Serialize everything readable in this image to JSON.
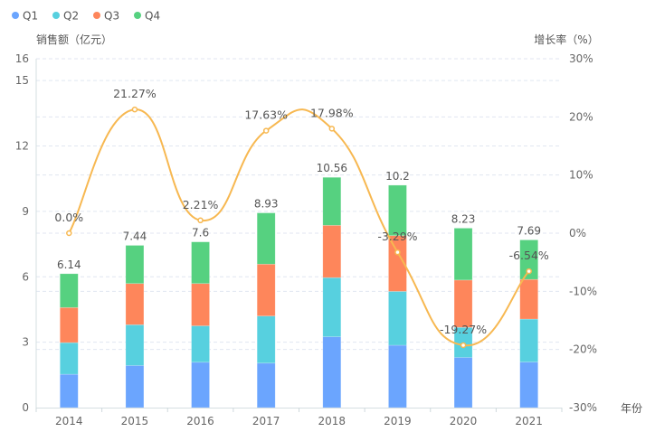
{
  "chart_data": {
    "type": "bar",
    "subtype": "stacked bar + smooth line, dual axis",
    "categories": [
      "2014",
      "2015",
      "2016",
      "2017",
      "2018",
      "2019",
      "2020",
      "2021"
    ],
    "series": [
      {
        "name": "Q1",
        "type": "bar",
        "stack": "total",
        "axis": "left",
        "color": "#6ba5fe",
        "values": [
          1.53,
          1.93,
          2.08,
          2.04,
          3.25,
          2.86,
          2.3,
          2.09
        ]
      },
      {
        "name": "Q2",
        "type": "bar",
        "stack": "total",
        "axis": "left",
        "color": "#57d0df",
        "values": [
          1.45,
          1.87,
          1.67,
          2.16,
          2.71,
          2.47,
          1.38,
          1.97
        ]
      },
      {
        "name": "Q3",
        "type": "bar",
        "stack": "total",
        "axis": "left",
        "color": "#fe865b",
        "values": [
          1.61,
          1.89,
          1.94,
          2.38,
          2.4,
          2.56,
          2.17,
          1.82
        ]
      },
      {
        "name": "Q4",
        "type": "bar",
        "stack": "total",
        "axis": "left",
        "color": "#56d180",
        "values": [
          1.55,
          1.75,
          1.91,
          2.35,
          2.2,
          2.31,
          2.38,
          1.81
        ]
      },
      {
        "name": "增长率",
        "type": "line",
        "smooth": true,
        "axis": "right",
        "color": "#f7b851",
        "values": [
          0.0,
          21.27,
          2.21,
          17.63,
          17.98,
          -3.29,
          -19.27,
          -6.54
        ]
      }
    ],
    "totals": [
      6.14,
      7.44,
      7.6,
      8.93,
      10.56,
      10.2,
      8.23,
      7.69
    ],
    "total_labels": [
      "6.14",
      "7.44",
      "7.6",
      "8.93",
      "10.56",
      "10.2",
      "8.23",
      "7.69"
    ],
    "growth_labels": [
      "0.0%",
      "21.27%",
      "2.21%",
      "17.63%",
      "17.98%",
      "-3.29%",
      "-19.27%",
      "-6.54%"
    ],
    "xlabel": "年份",
    "ylabel": "销售额（亿元）",
    "y2label": "增长率（%）",
    "ylim": [
      0,
      16
    ],
    "y_ticks": [
      "0",
      "3",
      "6",
      "9",
      "12",
      "15",
      "16"
    ],
    "y_tick_values": [
      0,
      3,
      6,
      9,
      12,
      15,
      16
    ],
    "y2lim": [
      -30,
      30
    ],
    "y2_ticks": [
      "-30%",
      "-20%",
      "-10%",
      "0%",
      "10%",
      "20%",
      "30%"
    ],
    "y2_tick_values": [
      -30,
      -20,
      -10,
      0,
      10,
      20,
      30
    ],
    "grid": true,
    "legend": {
      "position": "top-left",
      "items": [
        "Q1",
        "Q2",
        "Q3",
        "Q4"
      ]
    }
  }
}
